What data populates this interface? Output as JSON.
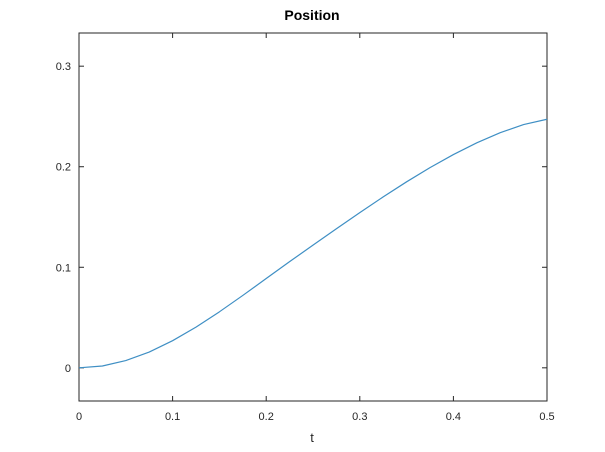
{
  "chart_data": {
    "type": "line",
    "title": "Position",
    "xlabel": "t",
    "ylabel": "",
    "xlim": [
      0,
      0.5
    ],
    "ylim": [
      -0.033,
      0.333
    ],
    "xticks": [
      0,
      0.1,
      0.2,
      0.3,
      0.4,
      0.5
    ],
    "xtick_labels": [
      "0",
      "0.1",
      "0.2",
      "0.3",
      "0.4",
      "0.5"
    ],
    "yticks": [
      0,
      0.1,
      0.2,
      0.3
    ],
    "ytick_labels": [
      "0",
      "0.1",
      "0.2",
      "0.3"
    ],
    "grid": false,
    "box": true,
    "series": [
      {
        "color": "#3f8fc4",
        "x": [
          0,
          0.025,
          0.05,
          0.075,
          0.1,
          0.125,
          0.15,
          0.175,
          0.2,
          0.225,
          0.25,
          0.275,
          0.3,
          0.325,
          0.35,
          0.375,
          0.4,
          0.425,
          0.45,
          0.475,
          0.5
        ],
        "y": [
          0,
          0.0018,
          0.0072,
          0.0157,
          0.027,
          0.0405,
          0.0557,
          0.072,
          0.0888,
          0.1056,
          0.122,
          0.1383,
          0.1543,
          0.17,
          0.185,
          0.1991,
          0.2121,
          0.2238,
          0.2339,
          0.2419,
          0.2472
        ]
      }
    ]
  }
}
